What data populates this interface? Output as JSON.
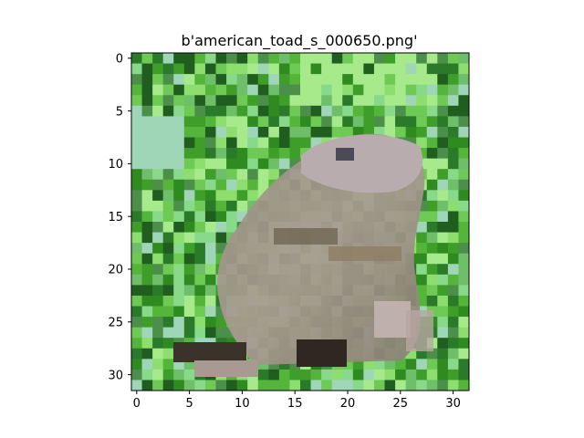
{
  "figure": {
    "title": "b'american_toad_s_000650.png'",
    "x_ticks": [
      "0",
      "5",
      "10",
      "15",
      "20",
      "25",
      "30"
    ],
    "y_ticks": [
      "0",
      "5",
      "10",
      "15",
      "20",
      "25",
      "30"
    ],
    "image_grid": "32x32 pixels",
    "subject": "american toad"
  }
}
